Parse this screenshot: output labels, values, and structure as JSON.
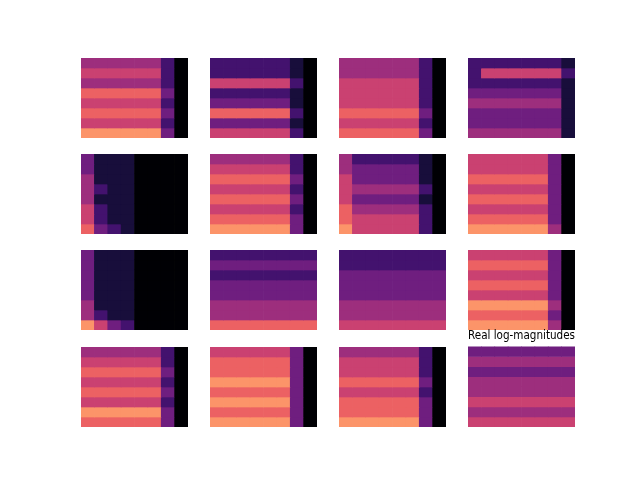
{
  "chart_data": [
    {
      "type": "heatmap",
      "tick_labels": false,
      "color_range": [
        0,
        9
      ],
      "cells": [
        [
          4,
          4,
          4,
          4,
          4,
          4,
          2,
          0
        ],
        [
          5,
          5,
          5,
          5,
          5,
          5,
          2,
          0
        ],
        [
          4,
          4,
          4,
          4,
          4,
          4,
          2,
          0
        ],
        [
          6,
          6,
          6,
          6,
          6,
          6,
          3,
          0
        ],
        [
          5,
          5,
          5,
          5,
          5,
          5,
          2,
          0
        ],
        [
          6,
          6,
          6,
          6,
          6,
          6,
          3,
          0
        ],
        [
          5,
          5,
          5,
          5,
          5,
          5,
          2,
          0
        ],
        [
          7,
          7,
          7,
          7,
          7,
          7,
          3,
          0
        ]
      ]
    },
    {
      "type": "heatmap",
      "tick_labels": false,
      "color_range": [
        0,
        9
      ],
      "cells": [
        [
          2,
          2,
          2,
          2,
          2,
          2,
          1,
          0
        ],
        [
          2,
          2,
          2,
          2,
          2,
          2,
          1,
          0
        ],
        [
          5,
          5,
          5,
          5,
          5,
          5,
          2,
          0
        ],
        [
          2,
          2,
          2,
          2,
          2,
          2,
          1,
          0
        ],
        [
          3,
          3,
          3,
          3,
          3,
          3,
          1,
          0
        ],
        [
          6,
          6,
          6,
          6,
          6,
          6,
          2,
          0
        ],
        [
          3,
          3,
          3,
          3,
          3,
          3,
          1,
          0
        ],
        [
          5,
          5,
          5,
          5,
          5,
          5,
          2,
          0
        ]
      ]
    },
    {
      "type": "heatmap",
      "tick_labels": false,
      "color_range": [
        0,
        9
      ],
      "cells": [
        [
          4,
          4,
          4,
          4,
          4,
          4,
          2,
          0
        ],
        [
          4,
          4,
          4,
          4,
          4,
          4,
          2,
          0
        ],
        [
          5,
          5,
          5,
          5,
          5,
          5,
          2,
          0
        ],
        [
          5,
          5,
          5,
          5,
          5,
          5,
          2,
          0
        ],
        [
          5,
          5,
          5,
          5,
          5,
          5,
          2,
          0
        ],
        [
          6,
          6,
          6,
          6,
          6,
          6,
          3,
          0
        ],
        [
          5,
          5,
          5,
          5,
          5,
          5,
          2,
          0
        ],
        [
          6,
          6,
          6,
          6,
          6,
          6,
          3,
          0
        ]
      ]
    },
    {
      "type": "heatmap",
      "tick_labels": false,
      "color_range": [
        0,
        9
      ],
      "cells": [
        [
          2,
          2,
          2,
          2,
          2,
          2,
          2,
          1
        ],
        [
          2,
          5,
          5,
          5,
          5,
          5,
          5,
          2
        ],
        [
          2,
          2,
          2,
          2,
          2,
          2,
          2,
          1
        ],
        [
          3,
          3,
          3,
          3,
          3,
          3,
          3,
          1
        ],
        [
          4,
          4,
          4,
          4,
          4,
          4,
          4,
          1
        ],
        [
          3,
          3,
          3,
          3,
          3,
          3,
          3,
          1
        ],
        [
          3,
          3,
          3,
          3,
          3,
          3,
          3,
          1
        ],
        [
          4,
          4,
          4,
          4,
          4,
          4,
          4,
          1
        ]
      ]
    },
    {
      "type": "heatmap",
      "tick_labels": false,
      "color_range": [
        0,
        9
      ],
      "cells": [
        [
          3,
          1,
          1,
          1,
          0,
          0,
          0,
          0
        ],
        [
          3,
          1,
          1,
          1,
          0,
          0,
          0,
          0
        ],
        [
          4,
          1,
          1,
          1,
          0,
          0,
          0,
          0
        ],
        [
          4,
          2,
          1,
          1,
          0,
          0,
          0,
          0
        ],
        [
          4,
          1,
          1,
          1,
          0,
          0,
          0,
          0
        ],
        [
          5,
          2,
          1,
          1,
          0,
          0,
          0,
          0
        ],
        [
          5,
          2,
          1,
          1,
          0,
          0,
          0,
          0
        ],
        [
          6,
          3,
          2,
          1,
          0,
          0,
          0,
          0
        ]
      ]
    },
    {
      "type": "heatmap",
      "tick_labels": false,
      "color_range": [
        0,
        9
      ],
      "cells": [
        [
          4,
          4,
          4,
          4,
          4,
          4,
          2,
          0
        ],
        [
          5,
          5,
          5,
          5,
          5,
          5,
          2,
          0
        ],
        [
          6,
          6,
          6,
          6,
          6,
          6,
          3,
          0
        ],
        [
          5,
          5,
          5,
          5,
          5,
          5,
          2,
          0
        ],
        [
          6,
          6,
          6,
          6,
          6,
          6,
          3,
          0
        ],
        [
          5,
          5,
          5,
          5,
          5,
          5,
          2,
          0
        ],
        [
          6,
          6,
          6,
          6,
          6,
          6,
          3,
          0
        ],
        [
          7,
          7,
          7,
          7,
          7,
          7,
          3,
          0
        ]
      ]
    },
    {
      "type": "heatmap",
      "tick_labels": false,
      "color_range": [
        0,
        9
      ],
      "cells": [
        [
          4,
          2,
          2,
          2,
          2,
          2,
          1,
          0
        ],
        [
          4,
          3,
          3,
          3,
          3,
          3,
          1,
          0
        ],
        [
          5,
          3,
          3,
          3,
          3,
          3,
          1,
          0
        ],
        [
          5,
          4,
          4,
          4,
          4,
          4,
          2,
          0
        ],
        [
          5,
          3,
          3,
          3,
          3,
          3,
          1,
          0
        ],
        [
          6,
          4,
          4,
          4,
          4,
          4,
          2,
          0
        ],
        [
          6,
          5,
          5,
          5,
          5,
          5,
          2,
          0
        ],
        [
          7,
          5,
          5,
          5,
          5,
          5,
          2,
          0
        ]
      ]
    },
    {
      "type": "heatmap",
      "tick_labels": false,
      "color_range": [
        0,
        9
      ],
      "cells": [
        [
          5,
          5,
          5,
          5,
          5,
          5,
          3,
          0
        ],
        [
          5,
          5,
          5,
          5,
          5,
          5,
          3,
          0
        ],
        [
          6,
          6,
          6,
          6,
          6,
          6,
          3,
          0
        ],
        [
          5,
          5,
          5,
          5,
          5,
          5,
          3,
          0
        ],
        [
          6,
          6,
          6,
          6,
          6,
          6,
          3,
          0
        ],
        [
          5,
          5,
          5,
          5,
          5,
          5,
          3,
          0
        ],
        [
          6,
          6,
          6,
          6,
          6,
          6,
          3,
          0
        ],
        [
          7,
          7,
          7,
          7,
          7,
          7,
          4,
          0
        ]
      ]
    },
    {
      "type": "heatmap",
      "tick_labels": false,
      "color_range": [
        0,
        9
      ],
      "cells": [
        [
          3,
          1,
          1,
          1,
          0,
          0,
          0,
          0
        ],
        [
          3,
          1,
          1,
          1,
          0,
          0,
          0,
          0
        ],
        [
          3,
          1,
          1,
          1,
          0,
          0,
          0,
          0
        ],
        [
          3,
          1,
          1,
          1,
          0,
          0,
          0,
          0
        ],
        [
          3,
          1,
          1,
          1,
          0,
          0,
          0,
          0
        ],
        [
          4,
          1,
          1,
          1,
          0,
          0,
          0,
          0
        ],
        [
          4,
          2,
          1,
          1,
          0,
          0,
          0,
          0
        ],
        [
          7,
          5,
          3,
          2,
          0,
          0,
          0,
          0
        ]
      ]
    },
    {
      "type": "heatmap",
      "tick_labels": false,
      "color_range": [
        0,
        9
      ],
      "cells": [
        [
          2,
          2,
          2,
          2,
          2,
          2,
          2,
          2
        ],
        [
          3,
          3,
          3,
          3,
          3,
          3,
          3,
          3
        ],
        [
          2,
          2,
          2,
          2,
          2,
          2,
          2,
          2
        ],
        [
          3,
          3,
          3,
          3,
          3,
          3,
          3,
          3
        ],
        [
          3,
          3,
          3,
          3,
          3,
          3,
          3,
          3
        ],
        [
          4,
          4,
          4,
          4,
          4,
          4,
          4,
          4
        ],
        [
          4,
          4,
          4,
          4,
          4,
          4,
          4,
          4
        ],
        [
          6,
          6,
          6,
          6,
          6,
          6,
          6,
          6
        ]
      ]
    },
    {
      "type": "heatmap",
      "tick_labels": false,
      "color_range": [
        0,
        9
      ],
      "cells": [
        [
          2,
          2,
          2,
          2,
          2,
          2,
          2,
          2
        ],
        [
          2,
          2,
          2,
          2,
          2,
          2,
          2,
          2
        ],
        [
          3,
          3,
          3,
          3,
          3,
          3,
          3,
          3
        ],
        [
          3,
          3,
          3,
          3,
          3,
          3,
          3,
          3
        ],
        [
          3,
          3,
          3,
          3,
          3,
          3,
          3,
          3
        ],
        [
          4,
          4,
          4,
          4,
          4,
          4,
          4,
          4
        ],
        [
          4,
          4,
          4,
          4,
          4,
          4,
          4,
          4
        ],
        [
          5,
          5,
          5,
          5,
          5,
          5,
          5,
          5
        ]
      ]
    },
    {
      "type": "heatmap",
      "tick_labels": false,
      "color_range": [
        0,
        9
      ],
      "cells": [
        [
          5,
          5,
          5,
          5,
          5,
          5,
          3,
          0
        ],
        [
          6,
          6,
          6,
          6,
          6,
          6,
          3,
          0
        ],
        [
          5,
          5,
          5,
          5,
          5,
          5,
          3,
          0
        ],
        [
          6,
          6,
          6,
          6,
          6,
          6,
          3,
          0
        ],
        [
          5,
          5,
          5,
          5,
          5,
          5,
          3,
          0
        ],
        [
          7,
          7,
          7,
          7,
          7,
          7,
          4,
          0
        ],
        [
          6,
          6,
          6,
          6,
          6,
          6,
          3,
          0
        ],
        [
          7,
          7,
          7,
          7,
          7,
          7,
          4,
          0
        ]
      ]
    },
    {
      "type": "heatmap",
      "tick_labels": false,
      "color_range": [
        0,
        9
      ],
      "cells": [
        [
          4,
          4,
          4,
          4,
          4,
          4,
          2,
          0
        ],
        [
          5,
          5,
          5,
          5,
          5,
          5,
          2,
          0
        ],
        [
          6,
          6,
          6,
          6,
          6,
          6,
          3,
          0
        ],
        [
          5,
          5,
          5,
          5,
          5,
          5,
          2,
          0
        ],
        [
          6,
          6,
          6,
          6,
          6,
          6,
          3,
          0
        ],
        [
          5,
          5,
          5,
          5,
          5,
          5,
          2,
          0
        ],
        [
          7,
          7,
          7,
          7,
          7,
          7,
          3,
          0
        ],
        [
          6,
          6,
          6,
          6,
          6,
          6,
          3,
          0
        ]
      ]
    },
    {
      "type": "heatmap",
      "tick_labels": false,
      "color_range": [
        0,
        9
      ],
      "cells": [
        [
          5,
          5,
          5,
          5,
          5,
          5,
          3,
          0
        ],
        [
          6,
          6,
          6,
          6,
          6,
          6,
          3,
          0
        ],
        [
          6,
          6,
          6,
          6,
          6,
          6,
          3,
          0
        ],
        [
          7,
          7,
          7,
          7,
          7,
          7,
          3,
          0
        ],
        [
          6,
          6,
          6,
          6,
          6,
          6,
          3,
          0
        ],
        [
          7,
          7,
          7,
          7,
          7,
          7,
          3,
          0
        ],
        [
          6,
          6,
          6,
          6,
          6,
          6,
          3,
          0
        ],
        [
          7,
          7,
          7,
          7,
          7,
          7,
          3,
          0
        ]
      ]
    },
    {
      "type": "heatmap",
      "tick_labels": false,
      "color_range": [
        0,
        9
      ],
      "cells": [
        [
          4,
          4,
          4,
          4,
          4,
          4,
          2,
          0
        ],
        [
          5,
          5,
          5,
          5,
          5,
          5,
          2,
          0
        ],
        [
          5,
          5,
          5,
          5,
          5,
          5,
          2,
          0
        ],
        [
          6,
          6,
          6,
          6,
          6,
          6,
          3,
          0
        ],
        [
          5,
          5,
          5,
          5,
          5,
          5,
          2,
          0
        ],
        [
          6,
          6,
          6,
          6,
          6,
          6,
          3,
          0
        ],
        [
          6,
          6,
          6,
          6,
          6,
          6,
          3,
          0
        ],
        [
          7,
          7,
          7,
          7,
          7,
          7,
          3,
          0
        ]
      ]
    },
    {
      "type": "heatmap",
      "title": "Real log-magnitudes",
      "tick_labels": false,
      "color_range": [
        0,
        9
      ],
      "cells": [
        [
          3,
          3,
          3,
          3,
          3,
          3,
          3,
          3
        ],
        [
          4,
          4,
          4,
          4,
          4,
          4,
          4,
          4
        ],
        [
          3,
          3,
          3,
          3,
          3,
          3,
          3,
          3
        ],
        [
          4,
          4,
          4,
          4,
          4,
          4,
          4,
          4
        ],
        [
          4,
          4,
          4,
          4,
          4,
          4,
          4,
          4
        ],
        [
          5,
          5,
          5,
          5,
          5,
          5,
          5,
          5
        ],
        [
          4,
          4,
          4,
          4,
          4,
          4,
          4,
          4
        ],
        [
          5,
          5,
          5,
          5,
          5,
          5,
          5,
          5
        ]
      ]
    }
  ]
}
